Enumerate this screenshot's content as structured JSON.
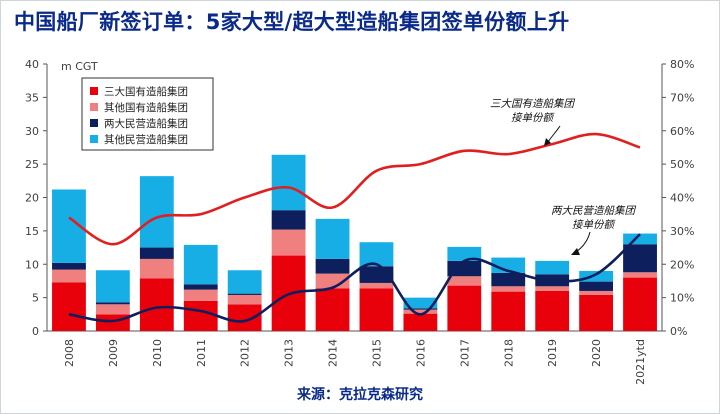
{
  "title": "中国船厂新签订单：5家大型/超大型造船集团签单份额上升",
  "source": "来源：克拉克森研究",
  "chart_data": {
    "type": "bar",
    "stacked": true,
    "categories": [
      "2008",
      "2009",
      "2010",
      "2011",
      "2012",
      "2013",
      "2014",
      "2015",
      "2016",
      "2017",
      "2018",
      "2019",
      "2020",
      "2021ytd"
    ],
    "y_left": {
      "unit": "m CGT",
      "lim": [
        0,
        40
      ],
      "ticks": [
        0,
        5,
        10,
        15,
        20,
        25,
        30,
        35,
        40
      ]
    },
    "y_right": {
      "lim": [
        0,
        80
      ],
      "ticks": [
        "0%",
        "10%",
        "20%",
        "30%",
        "40%",
        "50%",
        "60%",
        "70%",
        "80%"
      ]
    },
    "legend_position": "top-left",
    "series": [
      {
        "name": "三大国有造船集团",
        "color": "#e8000b",
        "values": [
          7.3,
          2.5,
          7.9,
          4.5,
          4.0,
          11.3,
          6.4,
          6.4,
          2.6,
          6.8,
          5.9,
          6.0,
          5.4,
          8.0
        ]
      },
      {
        "name": "其他国有造船集团",
        "color": "#f08080",
        "values": [
          1.9,
          1.5,
          2.9,
          1.7,
          1.4,
          3.9,
          2.2,
          0.8,
          0.6,
          1.4,
          0.8,
          0.7,
          0.6,
          0.8
        ]
      },
      {
        "name": "两大民营造船集团",
        "color": "#0d1f5c",
        "values": [
          1.0,
          0.3,
          1.7,
          0.8,
          0.2,
          2.9,
          2.2,
          2.5,
          0.2,
          2.3,
          2.0,
          1.8,
          1.4,
          4.2
        ]
      },
      {
        "name": "其他民营造船集团",
        "color": "#17aee6",
        "values": [
          11.0,
          4.8,
          10.7,
          5.9,
          3.5,
          8.3,
          6.0,
          3.6,
          1.6,
          2.1,
          2.3,
          2.0,
          1.6,
          1.6
        ]
      }
    ],
    "lines": [
      {
        "label": "三大国有造船集团\n接单份额",
        "axis": "right",
        "color": "#e02020",
        "values": [
          34,
          26,
          34,
          35,
          40,
          43,
          37,
          48,
          50,
          54,
          53,
          56,
          59,
          55
        ]
      },
      {
        "label": "两大民营造船集团\n接单份额",
        "axis": "right",
        "color": "#0d1f5c",
        "values": [
          5,
          3,
          7,
          6,
          3,
          11,
          13,
          20,
          5,
          21,
          18,
          15,
          17,
          29
        ]
      }
    ]
  }
}
